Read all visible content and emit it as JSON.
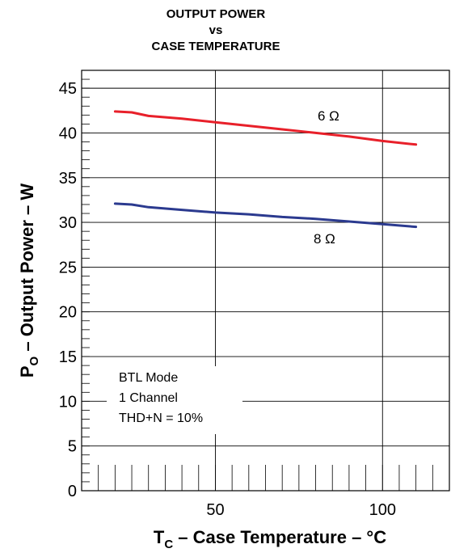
{
  "chart_data": {
    "type": "line",
    "title_lines": [
      "OUTPUT POWER",
      "vs",
      "CASE TEMPERATURE"
    ],
    "ylabel": {
      "main": "P",
      "sub": "O",
      "rest": " – Output Power – W"
    },
    "xlabel": {
      "main": "T",
      "sub": "C",
      "rest": " – Case Temperature – °C"
    },
    "xlim": [
      10,
      120
    ],
    "ylim": [
      0,
      47
    ],
    "x_ticks": [
      50,
      100
    ],
    "x_tick_labels": [
      "50",
      "100"
    ],
    "y_ticks": [
      0,
      5,
      10,
      15,
      20,
      25,
      30,
      35,
      40,
      45
    ],
    "y_tick_labels": [
      "0",
      "5",
      "10",
      "15",
      "20",
      "25",
      "30",
      "35",
      "40",
      "45"
    ],
    "grid": true,
    "annotations": [
      "BTL Mode",
      "1 Channel",
      "THD+N = 10%"
    ],
    "series": [
      {
        "name": "6 Ω",
        "color": "#e8202a",
        "x": [
          20,
          25,
          30,
          40,
          50,
          60,
          70,
          80,
          90,
          100,
          110
        ],
        "y": [
          42.4,
          42.3,
          41.9,
          41.6,
          41.2,
          40.8,
          40.4,
          40.0,
          39.6,
          39.1,
          38.7
        ]
      },
      {
        "name": "8 Ω",
        "color": "#2b3a8f",
        "x": [
          20,
          25,
          30,
          40,
          50,
          60,
          70,
          80,
          90,
          100,
          110
        ],
        "y": [
          32.1,
          32.0,
          31.7,
          31.4,
          31.1,
          30.9,
          30.6,
          30.4,
          30.1,
          29.8,
          29.5
        ]
      }
    ]
  }
}
